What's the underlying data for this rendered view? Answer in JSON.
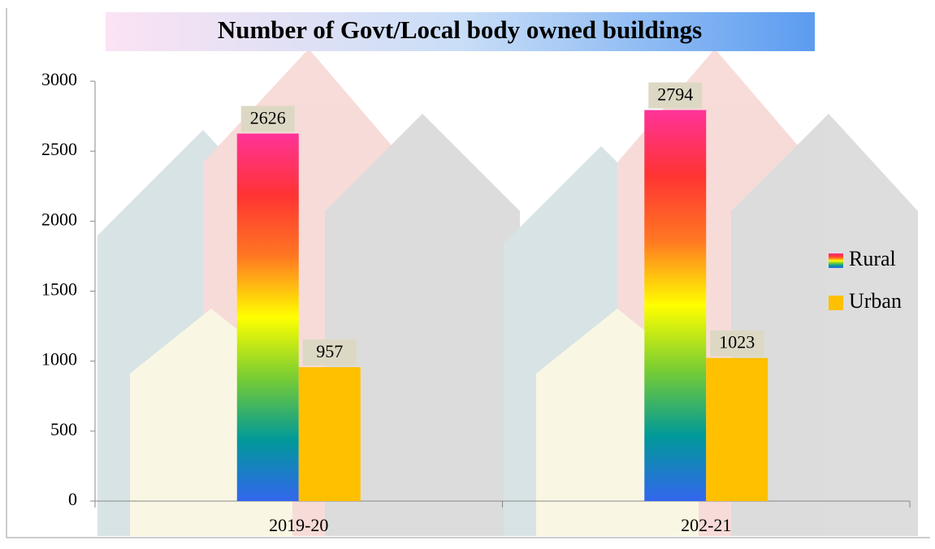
{
  "chart_data": {
    "type": "bar",
    "title": "Number of Govt/Local body owned buildings",
    "categories": [
      "2019-20",
      "202-21"
    ],
    "series": [
      {
        "name": "Rural",
        "color": "#ff3399",
        "gradient": [
          "#ff3399",
          "#ff3333",
          "#ff7722",
          "#ffff00",
          "#77cc33",
          "#009999",
          "#3366ee"
        ],
        "values": [
          2626,
          2794
        ]
      },
      {
        "name": "Urban",
        "color": "#ffc000",
        "values": [
          957,
          1023
        ]
      }
    ],
    "ylim": [
      0,
      3000
    ],
    "yticks": [
      0,
      500,
      1000,
      1500,
      2000,
      2500,
      3000
    ],
    "legend": "right"
  }
}
